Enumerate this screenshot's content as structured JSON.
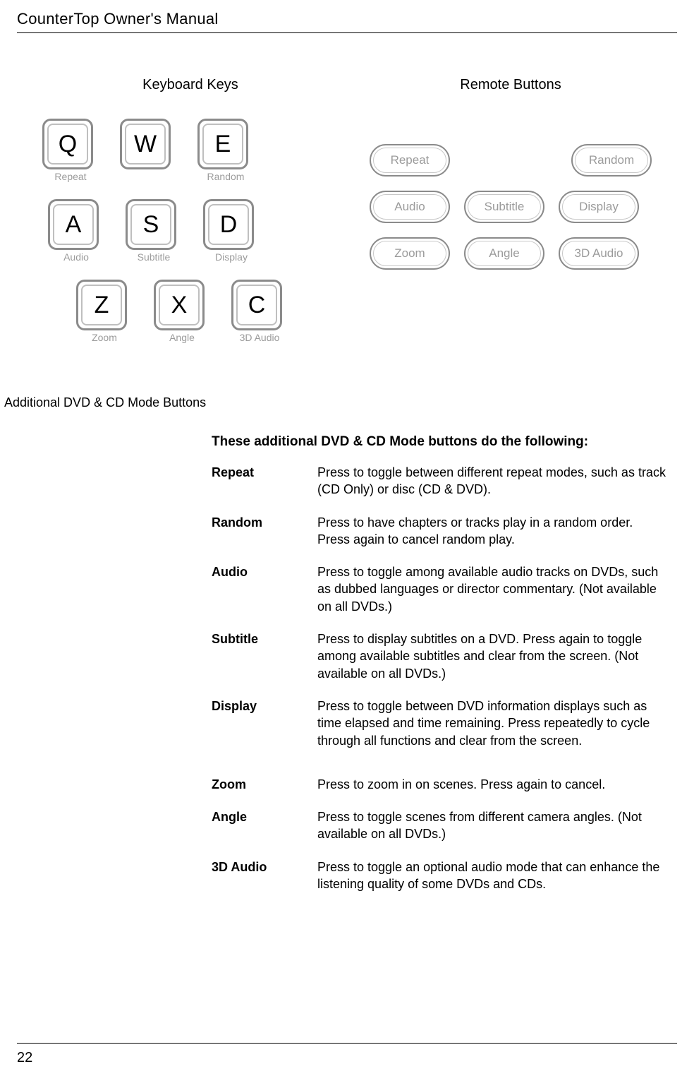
{
  "header": {
    "title": "CounterTop Owner's Manual"
  },
  "columns": {
    "left_title": "Keyboard Keys",
    "right_title": "Remote Buttons"
  },
  "keys": {
    "row1": [
      {
        "letter": "Q",
        "label": "Repeat"
      },
      {
        "letter": "W",
        "label": ""
      },
      {
        "letter": "E",
        "label": "Random"
      }
    ],
    "row2": [
      {
        "letter": "A",
        "label": "Audio"
      },
      {
        "letter": "S",
        "label": "Subtitle"
      },
      {
        "letter": "D",
        "label": "Display"
      }
    ],
    "row3": [
      {
        "letter": "Z",
        "label": "Zoom"
      },
      {
        "letter": "X",
        "label": "Angle"
      },
      {
        "letter": "C",
        "label": "3D Audio"
      }
    ]
  },
  "remote": {
    "row1": [
      "Repeat",
      "Random"
    ],
    "row2": [
      "Audio",
      "Subtitle",
      "Display"
    ],
    "row3": [
      "Zoom",
      "Angle",
      "3D Audio"
    ]
  },
  "section_label": "Additional DVD & CD Mode Buttons",
  "desc": {
    "heading": "These additional DVD & CD Mode buttons do the following:",
    "items": [
      {
        "term": "Repeat",
        "text": "Press to toggle between different repeat modes, such as track (CD Only) or disc (CD & DVD)."
      },
      {
        "term": "Random",
        "text": "Press to have chapters or tracks play in a random order. Press again to cancel random play."
      },
      {
        "term": "Audio",
        "text": "Press to toggle among available audio tracks on DVDs, such as dubbed languages or director commentary. (Not available on all DVDs.)"
      },
      {
        "term": "Subtitle",
        "text": "Press to display subtitles on a DVD. Press again to toggle among available subtitles and clear from the screen. (Not available on all DVDs.)"
      },
      {
        "term": "Display",
        "text": "Press to toggle between DVD information displays such as time elapsed and time remaining. Press repeatedly to cycle through all functions and clear from the screen."
      },
      {
        "term": "Zoom",
        "text": "Press to zoom in on scenes. Press again to cancel."
      },
      {
        "term": "Angle",
        "text": "Press to toggle scenes from different camera angles. (Not available on all DVDs.)"
      },
      {
        "term": "3D Audio",
        "text": "Press to toggle an optional audio mode that can enhance the listening quality of some DVDs and CDs."
      }
    ]
  },
  "page_number": "22"
}
